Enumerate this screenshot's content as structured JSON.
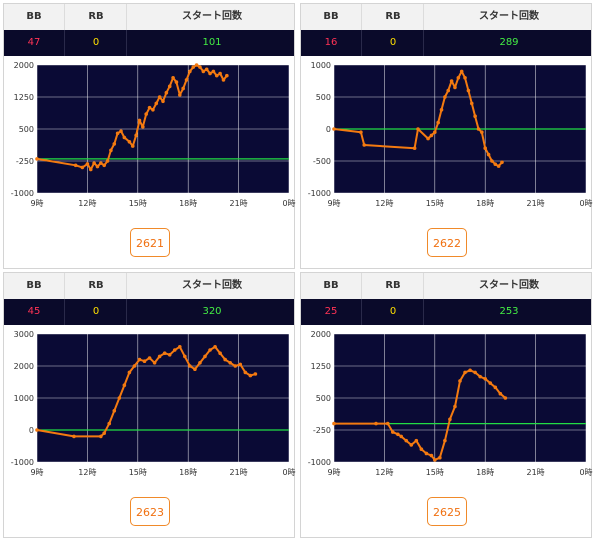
{
  "headers": {
    "bb": "BB",
    "rb": "RB",
    "start": "スタート回数"
  },
  "colors": {
    "plot_bg": "#0a0a35",
    "line": "#f47a10",
    "baseline": "#22dd44",
    "grid": "#ffffff",
    "bb": "#ff3355",
    "rb": "#ffe000",
    "start": "#44ee44"
  },
  "machines": [
    {
      "bb": "47",
      "rb": "0",
      "start": "101",
      "button": "2621"
    },
    {
      "bb": "16",
      "rb": "0",
      "start": "289",
      "button": "2622"
    },
    {
      "bb": "45",
      "rb": "0",
      "start": "320",
      "button": "2623"
    },
    {
      "bb": "25",
      "rb": "0",
      "start": "253",
      "button": "2625"
    }
  ],
  "chart_data": [
    {
      "type": "line",
      "xlim": [
        9,
        24
      ],
      "ylim": [
        -1000,
        2000
      ],
      "xticks": [
        "9時",
        "12時",
        "15時",
        "18時",
        "21時",
        "0時"
      ],
      "yticks": [
        "2000",
        "1250",
        "500",
        "-250",
        "-1000"
      ],
      "baseline": -200,
      "series": [
        {
          "x": [
            9.0,
            11.3,
            11.7,
            12.0,
            12.2,
            12.4,
            12.6,
            12.8,
            13.0,
            13.2,
            13.4,
            13.6,
            13.8,
            14.0,
            14.2,
            14.5,
            14.7,
            14.9,
            15.1,
            15.3,
            15.5,
            15.7,
            15.9,
            16.1,
            16.3,
            16.5,
            16.7,
            16.9,
            17.1,
            17.3,
            17.5,
            17.7,
            17.9,
            18.1,
            18.3,
            18.5,
            18.7,
            18.9,
            19.1,
            19.3,
            19.5,
            19.7,
            19.9,
            20.1,
            20.3
          ],
          "y": [
            -200,
            -350,
            -400,
            -320,
            -450,
            -300,
            -380,
            -300,
            -350,
            -250,
            0,
            150,
            400,
            450,
            300,
            200,
            100,
            350,
            700,
            550,
            850,
            1000,
            950,
            1100,
            1250,
            1150,
            1350,
            1500,
            1700,
            1600,
            1300,
            1450,
            1650,
            1850,
            1950,
            2000,
            1950,
            1850,
            1900,
            1800,
            1850,
            1750,
            1800,
            1650,
            1750
          ]
        }
      ]
    },
    {
      "type": "line",
      "xlim": [
        9,
        24
      ],
      "ylim": [
        -1000,
        1000
      ],
      "xticks": [
        "9時",
        "12時",
        "15時",
        "18時",
        "21時",
        "0時"
      ],
      "yticks": [
        "1000",
        "500",
        "0",
        "-500",
        "-1000"
      ],
      "baseline": 0,
      "series": [
        {
          "x": [
            9.0,
            10.6,
            10.8,
            13.8,
            14.0,
            14.6,
            14.8,
            15.0,
            15.2,
            15.4,
            15.6,
            15.8,
            16.0,
            16.2,
            16.4,
            16.6,
            16.8,
            17.0,
            17.2,
            17.4,
            17.6,
            17.8,
            18.0,
            18.2,
            18.4,
            18.6,
            18.8,
            19.0
          ],
          "y": [
            0,
            -50,
            -250,
            -300,
            0,
            -150,
            -100,
            -50,
            100,
            300,
            500,
            600,
            750,
            650,
            800,
            900,
            800,
            600,
            400,
            200,
            0,
            -50,
            -300,
            -400,
            -500,
            -550,
            -580,
            -520
          ]
        }
      ]
    },
    {
      "type": "line",
      "xlim": [
        9,
        24
      ],
      "ylim": [
        -1000,
        3000
      ],
      "xticks": [
        "9時",
        "12時",
        "15時",
        "18時",
        "21時",
        "0時"
      ],
      "yticks": [
        "3000",
        "2000",
        "1000",
        "0",
        "-1000"
      ],
      "baseline": 0,
      "series": [
        {
          "x": [
            9.0,
            11.2,
            12.8,
            13.0,
            13.3,
            13.6,
            13.9,
            14.2,
            14.5,
            14.8,
            15.1,
            15.4,
            15.7,
            16.0,
            16.3,
            16.6,
            16.9,
            17.2,
            17.5,
            17.8,
            18.1,
            18.4,
            18.7,
            19.0,
            19.3,
            19.6,
            19.9,
            20.2,
            20.5,
            20.8,
            21.1,
            21.4,
            21.7,
            22.0
          ],
          "y": [
            0,
            -200,
            -200,
            -100,
            200,
            600,
            1000,
            1400,
            1800,
            2000,
            2200,
            2150,
            2250,
            2100,
            2300,
            2400,
            2350,
            2500,
            2600,
            2300,
            2000,
            1900,
            2100,
            2300,
            2500,
            2600,
            2400,
            2200,
            2100,
            2000,
            2050,
            1800,
            1700,
            1750
          ]
        }
      ]
    },
    {
      "type": "line",
      "xlim": [
        9,
        24
      ],
      "ylim": [
        -1000,
        2000
      ],
      "xticks": [
        "9時",
        "12時",
        "15時",
        "18時",
        "21時",
        "0時"
      ],
      "yticks": [
        "2000",
        "1250",
        "500",
        "-250",
        "-1000"
      ],
      "baseline": -100,
      "series": [
        {
          "x": [
            9.0,
            11.5,
            12.2,
            12.5,
            12.8,
            13.0,
            13.3,
            13.6,
            13.9,
            14.2,
            14.5,
            14.8,
            15.0,
            15.3,
            15.6,
            15.9,
            16.2,
            16.5,
            16.8,
            17.1,
            17.4,
            17.7,
            18.0,
            18.3,
            18.6,
            18.9,
            19.2
          ],
          "y": [
            -100,
            -100,
            -100,
            -300,
            -350,
            -400,
            -500,
            -600,
            -500,
            -700,
            -800,
            -850,
            -950,
            -900,
            -500,
            0,
            300,
            900,
            1100,
            1150,
            1100,
            1000,
            950,
            850,
            750,
            600,
            500
          ]
        }
      ]
    }
  ]
}
